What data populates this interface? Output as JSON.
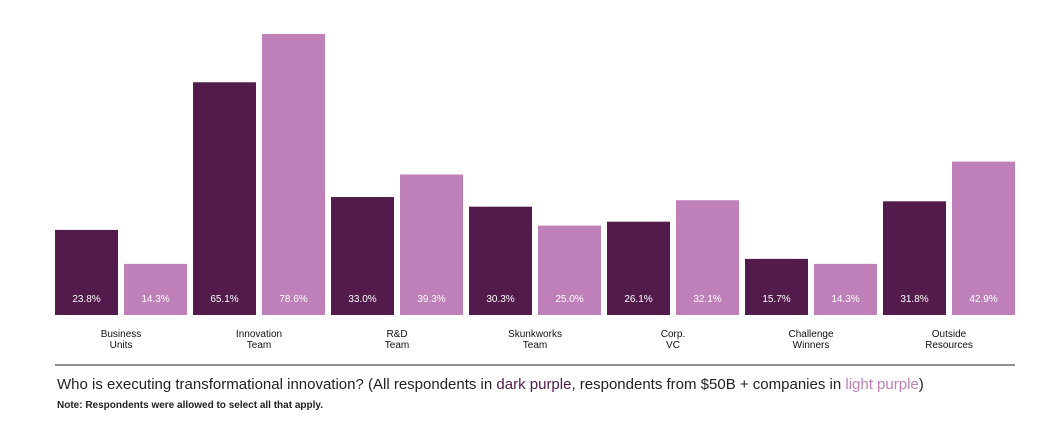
{
  "chart_data": {
    "type": "bar",
    "categories": [
      "Business\nUnits",
      "Innovation\nTeam",
      "R&D\nTeam",
      "Skunkworks\nTeam",
      "Corp.\nVC",
      "Challenge\nWinners",
      "Outside\nResources"
    ],
    "series": [
      {
        "color": "#521b4b",
        "values": [
          23.8,
          65.1,
          33.0,
          30.3,
          26.1,
          15.7,
          31.8
        ],
        "value_labels": [
          "23.8%",
          "65.1%",
          "33.0%",
          "30.3%",
          "26.1%",
          "15.7%",
          "31.8%"
        ]
      },
      {
        "color": "#bf7fb8",
        "values": [
          14.3,
          78.6,
          39.3,
          25.0,
          32.1,
          14.3,
          42.9
        ],
        "value_labels": [
          "14.3%",
          "78.6%",
          "39.3%",
          "25.0%",
          "32.1%",
          "14.3%",
          "42.9%"
        ]
      }
    ],
    "ylim": [
      0,
      80
    ],
    "caption": [
      "Who is executing transformational innovation? (All respondents in ",
      "dark purple",
      ", respondents from $50B + companies in ",
      "light purple",
      ")"
    ],
    "note": "Note: Respondents were allowed to select all that apply."
  }
}
